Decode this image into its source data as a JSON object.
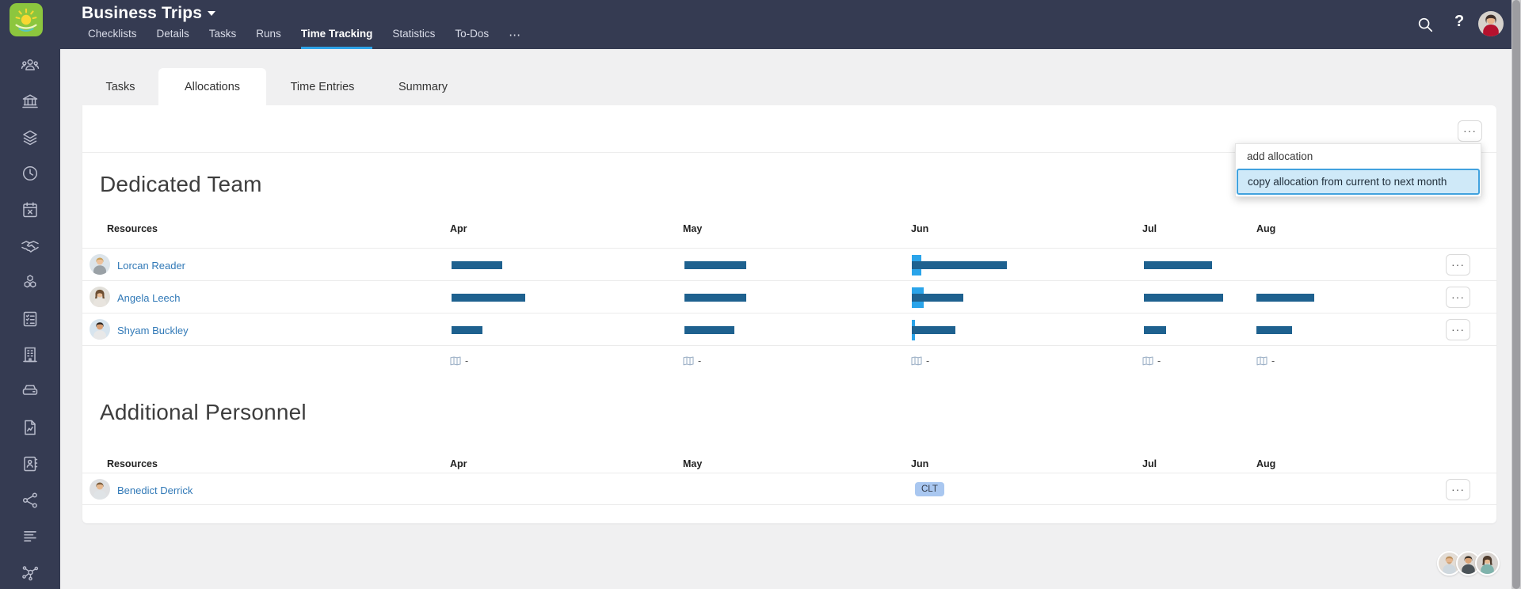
{
  "header": {
    "project_title": "Business Trips",
    "nav": [
      "Checklists",
      "Details",
      "Tasks",
      "Runs",
      "Time Tracking",
      "Statistics",
      "To-Dos"
    ],
    "active_nav": "Time Tracking",
    "more_label": "⋯",
    "help_label": "?",
    "search_icon": "search-magnifier",
    "accent_color": "#2ea3e9",
    "bar_color": "#353b52"
  },
  "sidebar": {
    "icons": [
      "team",
      "bank",
      "layers",
      "clock",
      "calendar-absence",
      "handshake",
      "modules",
      "checklist",
      "company",
      "storage",
      "report",
      "contacts",
      "share",
      "list",
      "network"
    ]
  },
  "tabs": {
    "items": [
      "Tasks",
      "Allocations",
      "Time Entries",
      "Summary"
    ],
    "active": "Allocations"
  },
  "toolbar": {
    "more_label": "···",
    "row_more_label": "···"
  },
  "menu": {
    "items": [
      {
        "label": "add allocation",
        "highlighted": false
      },
      {
        "label": "copy allocation from current to next month",
        "highlighted": true
      }
    ],
    "highlight_bg": "#cfe9f8",
    "highlight_border": "#41a2de"
  },
  "dedicated": {
    "title": "Dedicated Team",
    "columns": [
      "Resources",
      "Apr",
      "May",
      "Jun",
      "Jul",
      "Aug"
    ],
    "bar_color": "#1e618f",
    "current_month_color": "#2aa4ea",
    "rows": [
      {
        "name": "Lorcan Reader",
        "bars": {
          "apr": 64,
          "may": 78,
          "jun": 120,
          "jun_highlight": 12,
          "jul": 86,
          "aug": 0
        }
      },
      {
        "name": "Angela Leech",
        "bars": {
          "apr": 93,
          "may": 78,
          "jun": 65,
          "jun_highlight": 15,
          "jul": 100,
          "aug": 73
        }
      },
      {
        "name": "Shyam Buckley",
        "bars": {
          "apr": 39,
          "may": 63,
          "jun": 55,
          "jun_highlight": 4,
          "jul": 28,
          "aug": 45
        }
      }
    ],
    "footer": {
      "apr": "-",
      "may": "-",
      "jun": "-",
      "jul": "-",
      "aug": "-"
    }
  },
  "additional": {
    "title": "Additional Personnel",
    "columns": [
      "Resources",
      "Apr",
      "May",
      "Jun",
      "Jul",
      "Aug"
    ],
    "rows": [
      {
        "name": "Benedict Derrick",
        "jun_badge": "CLT",
        "badge_color": "#a9c7f0"
      }
    ]
  }
}
